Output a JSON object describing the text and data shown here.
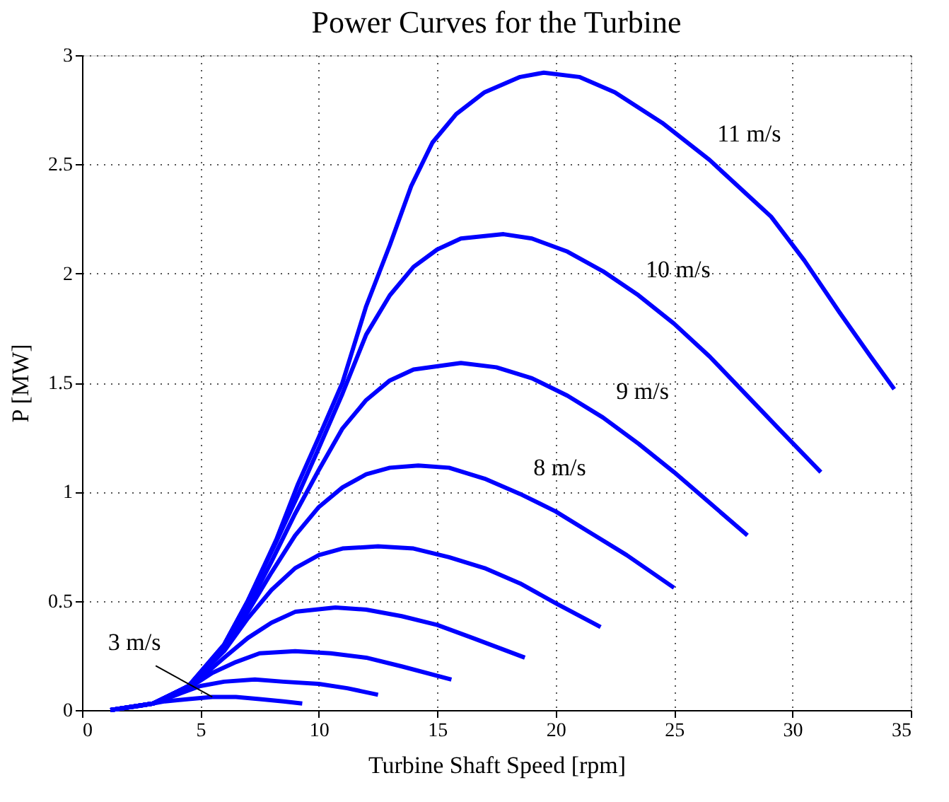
{
  "chart_data": {
    "type": "line",
    "title": "Power Curves for the Turbine",
    "xlabel": "Turbine Shaft Speed [rpm]",
    "ylabel": "P [MW]",
    "xlim": [
      0,
      35
    ],
    "xticks": [
      0,
      5,
      10,
      15,
      20,
      25,
      30,
      35
    ],
    "ylim": [
      0,
      3
    ],
    "yticks": [
      0,
      0.5,
      1,
      1.5,
      2,
      2.5,
      3
    ],
    "grid": true,
    "legend": false,
    "marker": "none",
    "line_style": "solid",
    "series": [
      {
        "name": "3 m/s",
        "color": "#0000ff",
        "x": [
          1.2,
          2.5,
          3.5,
          4.5,
          5.5,
          6.5,
          7.5,
          8.5,
          9.3
        ],
        "values": [
          0,
          0.02,
          0.04,
          0.05,
          0.06,
          0.06,
          0.05,
          0.04,
          0.03
        ]
      },
      {
        "color": "#0000ff",
        "x": [
          1.2,
          3,
          4,
          5,
          6,
          7.3,
          8.5,
          10,
          11.2,
          12.5
        ],
        "values": [
          0,
          0.03,
          0.07,
          0.11,
          0.13,
          0.14,
          0.13,
          0.12,
          0.1,
          0.07
        ]
      },
      {
        "color": "#0000ff",
        "x": [
          1.2,
          3,
          4.5,
          5.5,
          6.5,
          7.5,
          9,
          10.5,
          12,
          13.5,
          15.6
        ],
        "values": [
          0,
          0.03,
          0.1,
          0.17,
          0.22,
          0.26,
          0.27,
          0.26,
          0.24,
          0.2,
          0.14
        ]
      },
      {
        "color": "#0000ff",
        "x": [
          1.2,
          3,
          4.5,
          6,
          7,
          8,
          9,
          10.7,
          12,
          13.5,
          15,
          16.5,
          18.7
        ],
        "values": [
          0,
          0.03,
          0.1,
          0.24,
          0.33,
          0.4,
          0.45,
          0.47,
          0.46,
          0.43,
          0.39,
          0.33,
          0.24
        ]
      },
      {
        "color": "#0000ff",
        "x": [
          1.2,
          3,
          4.5,
          6,
          7,
          8,
          9,
          10,
          11,
          12.5,
          14,
          15.5,
          17,
          18.5,
          20,
          21.9
        ],
        "values": [
          0,
          0.03,
          0.11,
          0.27,
          0.42,
          0.55,
          0.65,
          0.71,
          0.74,
          0.75,
          0.74,
          0.7,
          0.65,
          0.58,
          0.49,
          0.38
        ]
      },
      {
        "name": "8 m/s",
        "color": "#0000ff",
        "x": [
          1.2,
          3,
          4.5,
          6,
          7,
          8,
          9,
          10,
          11,
          12,
          13,
          14.2,
          15.5,
          17,
          18.5,
          20,
          21.5,
          23,
          25
        ],
        "values": [
          0,
          0.03,
          0.11,
          0.28,
          0.45,
          0.63,
          0.8,
          0.93,
          1.02,
          1.08,
          1.11,
          1.12,
          1.11,
          1.06,
          0.99,
          0.91,
          0.81,
          0.71,
          0.56
        ]
      },
      {
        "name": "9 m/s",
        "color": "#0000ff",
        "x": [
          1.2,
          3,
          4.5,
          6,
          7,
          8,
          9,
          10,
          11,
          12,
          13,
          14,
          16,
          17.5,
          19,
          20.5,
          22,
          23.5,
          25,
          26.5,
          28.1
        ],
        "values": [
          0,
          0.03,
          0.11,
          0.29,
          0.47,
          0.68,
          0.9,
          1.1,
          1.29,
          1.42,
          1.51,
          1.56,
          1.59,
          1.57,
          1.52,
          1.44,
          1.34,
          1.22,
          1.09,
          0.95,
          0.8
        ]
      },
      {
        "name": "10 m/s",
        "color": "#0000ff",
        "x": [
          1.2,
          3,
          4.5,
          6,
          7,
          8.2,
          9.1,
          10,
          11,
          12,
          13,
          14,
          15,
          16,
          17.8,
          19,
          20.5,
          22,
          23.5,
          25,
          26.5,
          28,
          29.5,
          31.2
        ],
        "values": [
          0,
          0.03,
          0.11,
          0.3,
          0.5,
          0.77,
          0.98,
          1.2,
          1.45,
          1.72,
          1.9,
          2.03,
          2.11,
          2.16,
          2.18,
          2.16,
          2.1,
          2.01,
          1.9,
          1.77,
          1.62,
          1.45,
          1.28,
          1.09
        ]
      },
      {
        "name": "11 m/s",
        "color": "#0000ff",
        "x": [
          1.2,
          3,
          4.5,
          6,
          7,
          8.2,
          9.1,
          10,
          11,
          12,
          13,
          13.9,
          14.8,
          15.8,
          17,
          18.5,
          19.5,
          21,
          22.5,
          24.5,
          26.5,
          28,
          29.1,
          30.5,
          32,
          33.3,
          34.3
        ],
        "values": [
          0,
          0.03,
          0.11,
          0.3,
          0.5,
          0.78,
          1.03,
          1.25,
          1.5,
          1.85,
          2.13,
          2.4,
          2.6,
          2.73,
          2.83,
          2.9,
          2.92,
          2.9,
          2.83,
          2.69,
          2.52,
          2.37,
          2.26,
          2.06,
          1.82,
          1.62,
          1.47
        ]
      }
    ]
  }
}
